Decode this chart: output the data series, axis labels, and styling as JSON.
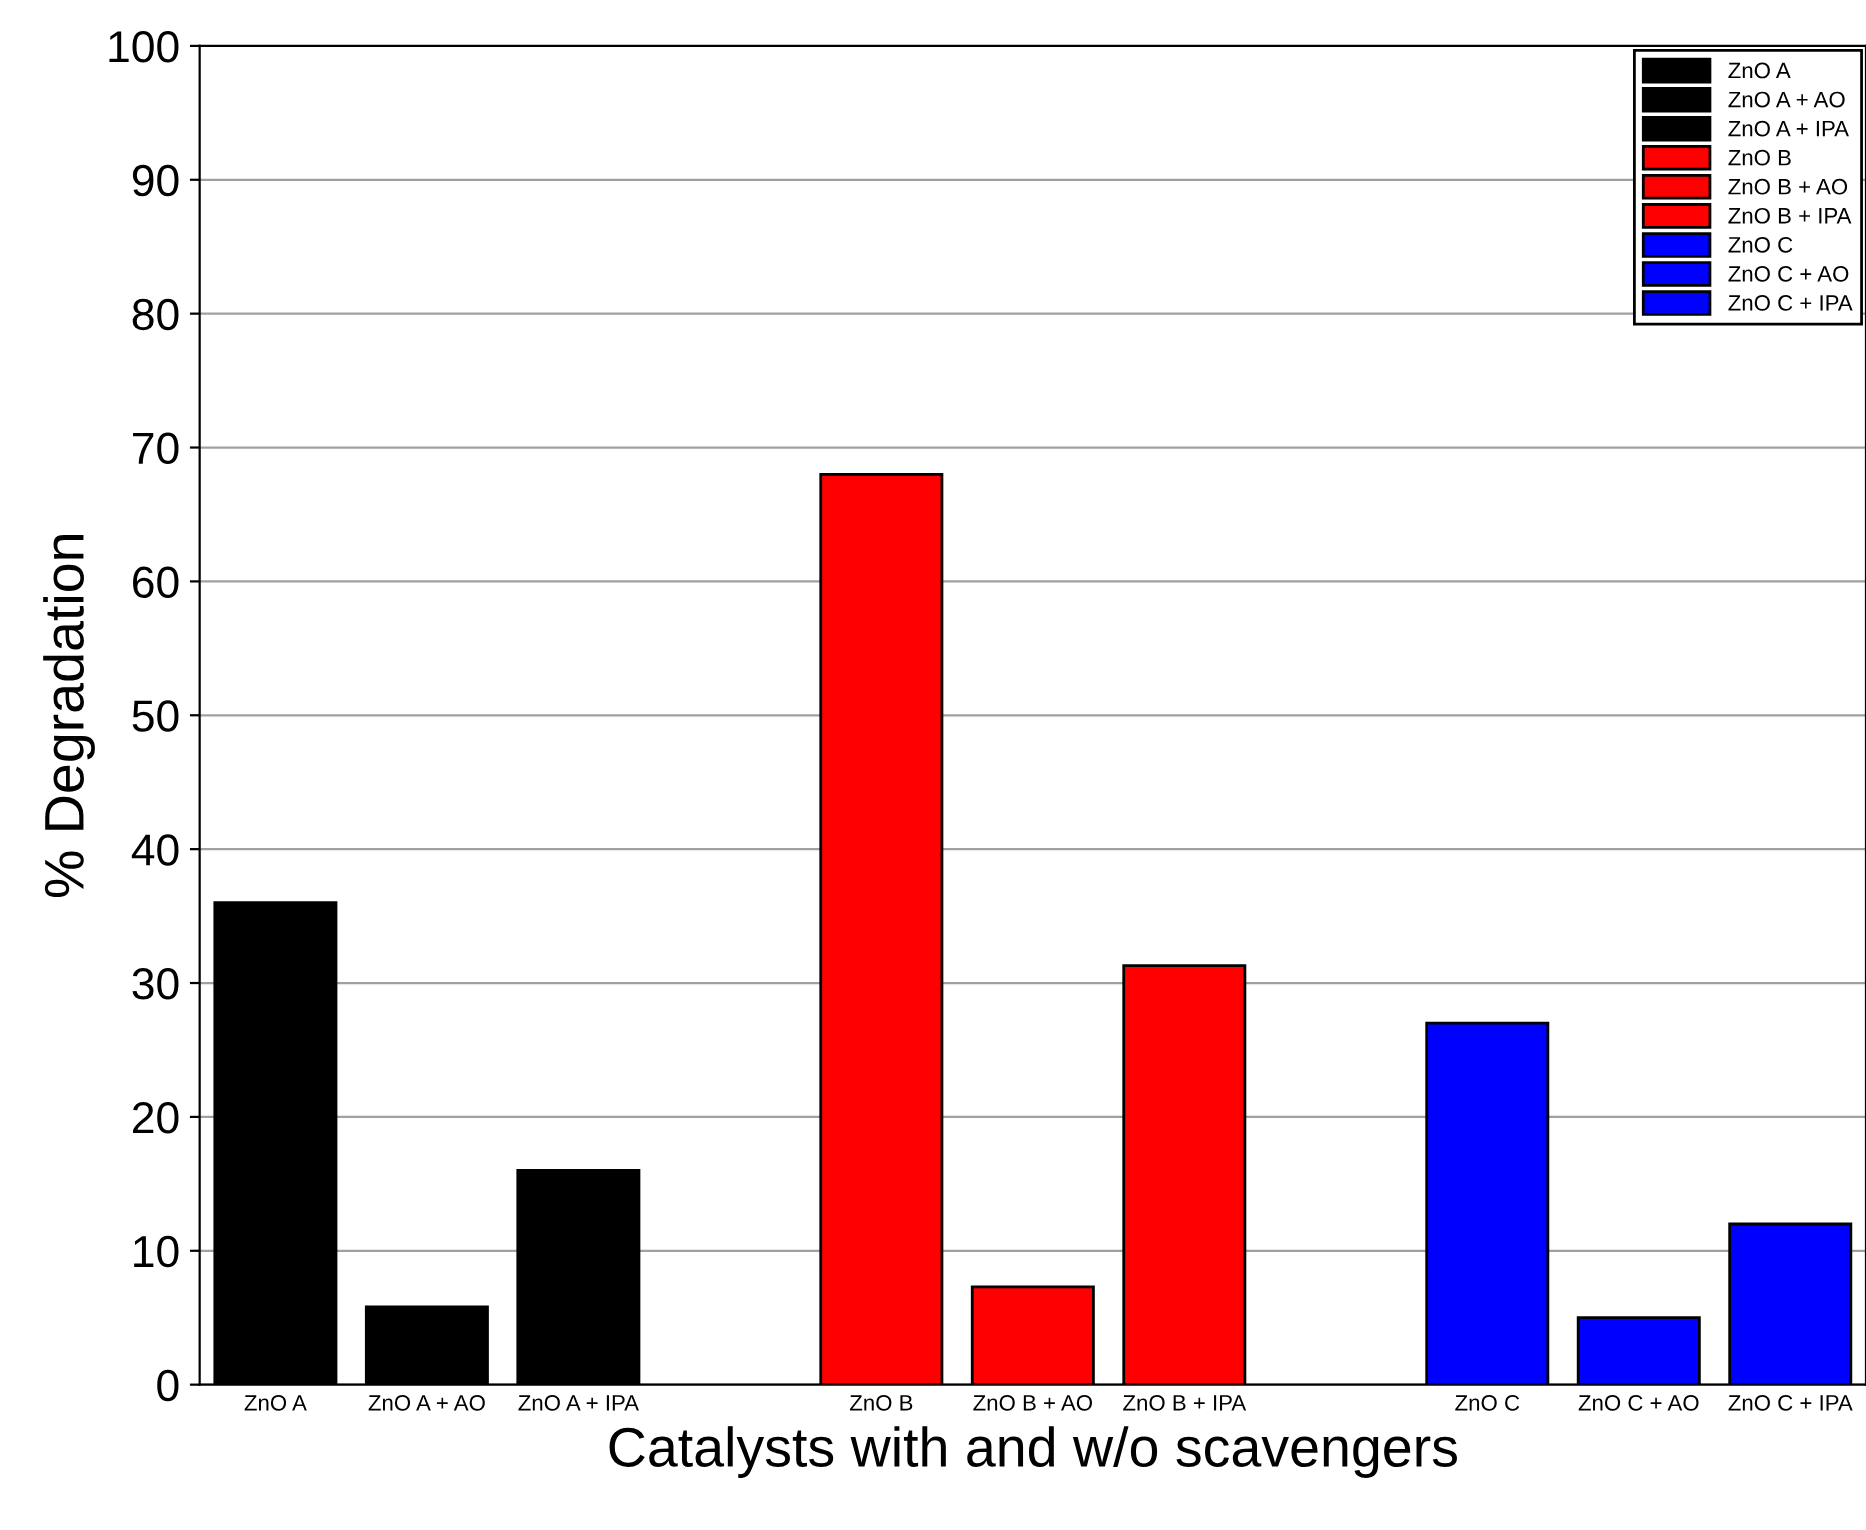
{
  "chart_data": {
    "type": "bar",
    "xlabel": "Catalysts with and w/o scavengers",
    "ylabel": "% Degradation",
    "categories": [
      "ZnO A",
      "ZnO A + AO",
      "ZnO A + IPA",
      null,
      "ZnO B",
      "ZnO B + AO",
      "ZnO B + IPA",
      null,
      "ZnO C",
      "ZnO C + AO",
      "ZnO C + IPA"
    ],
    "series": [
      {
        "name": "ZnO A",
        "color": "#000000",
        "values": [
          36,
          null,
          null,
          null,
          null,
          null,
          null,
          null,
          null,
          null,
          null
        ]
      },
      {
        "name": "ZnO A + AO",
        "color": "#000000",
        "values": [
          null,
          5.8,
          null,
          null,
          null,
          null,
          null,
          null,
          null,
          null,
          null
        ]
      },
      {
        "name": "ZnO A + IPA",
        "color": "#000000",
        "values": [
          null,
          null,
          16,
          null,
          null,
          null,
          null,
          null,
          null,
          null,
          null
        ]
      },
      {
        "name": "ZnO B",
        "color": "#ff0000",
        "values": [
          null,
          null,
          null,
          null,
          68,
          null,
          null,
          null,
          null,
          null,
          null
        ]
      },
      {
        "name": "ZnO B + AO",
        "color": "#ff0000",
        "values": [
          null,
          null,
          null,
          null,
          null,
          7.3,
          null,
          null,
          null,
          null,
          null
        ]
      },
      {
        "name": "ZnO B + IPA",
        "color": "#ff0000",
        "values": [
          null,
          null,
          null,
          null,
          null,
          null,
          31.3,
          null,
          null,
          null,
          null
        ]
      },
      {
        "name": "ZnO C",
        "color": "#0000ff",
        "values": [
          null,
          null,
          null,
          null,
          null,
          null,
          null,
          null,
          27,
          null,
          null
        ]
      },
      {
        "name": "ZnO C + AO",
        "color": "#0000ff",
        "values": [
          null,
          null,
          null,
          null,
          null,
          null,
          null,
          null,
          null,
          5,
          null
        ]
      },
      {
        "name": "ZnO C + IPA",
        "color": "#0000ff",
        "values": [
          null,
          null,
          null,
          null,
          null,
          null,
          null,
          null,
          null,
          null,
          12
        ]
      }
    ],
    "ylim": [
      0,
      100
    ],
    "yticks": [
      0,
      10,
      20,
      30,
      40,
      50,
      60,
      70,
      80,
      90,
      100
    ],
    "grid": "y",
    "legend": "top right"
  }
}
